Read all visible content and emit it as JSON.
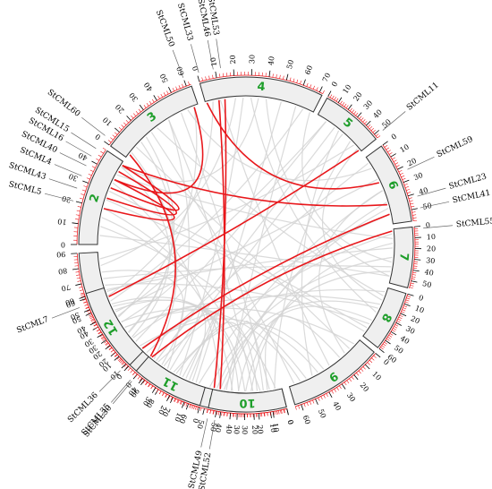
{
  "diagram": {
    "type": "circos-synteny",
    "background_link_color": "#d3d3d3",
    "highlight_link_color": "#e8171b",
    "chromosome_fill": "#efefef",
    "chromosome_label_color": "#1e9e2a",
    "tick_color": "#e8171b",
    "chromosomes": [
      {
        "id": "0",
        "label": "0",
        "length": 92,
        "arc_start_deg": 76,
        "arc_end_deg": 128
      },
      {
        "id": "1",
        "label": "1",
        "length": 90,
        "arc_start_deg": 130,
        "arc_end_deg": 177
      },
      {
        "id": "2",
        "label": "2",
        "length": 48,
        "arc_start_deg": 180,
        "arc_end_deg": 214
      },
      {
        "id": "3",
        "label": "3",
        "length": 63,
        "arc_start_deg": 216,
        "arc_end_deg": 251
      },
      {
        "id": "4",
        "label": "4",
        "length": 72,
        "arc_start_deg": 254,
        "arc_end_deg": 297
      },
      {
        "id": "5",
        "label": "5",
        "length": 54,
        "arc_start_deg": 299,
        "arc_end_deg": 321
      },
      {
        "id": "6",
        "label": "6",
        "length": 58,
        "arc_start_deg": 324,
        "arc_end_deg": 352
      },
      {
        "id": "7",
        "label": "7",
        "length": 57,
        "arc_start_deg": 354,
        "arc_end_deg": 375
      },
      {
        "id": "8",
        "label": "8",
        "length": 60,
        "arc_start_deg": 377,
        "arc_end_deg": 398
      },
      {
        "id": "9",
        "label": "9",
        "length": 64,
        "arc_start_deg": 400,
        "arc_end_deg": 433
      },
      {
        "id": "10",
        "label": "10",
        "length": 56,
        "arc_start_deg": 436,
        "arc_end_deg": 463
      },
      {
        "id": "11",
        "label": "11",
        "length": 46,
        "arc_start_deg": 466,
        "arc_end_deg": 491
      },
      {
        "id": "12",
        "label": "12",
        "length": 62,
        "arc_start_deg": 494,
        "arc_end_deg": 523
      }
    ],
    "genes": [
      {
        "name": "StCML52",
        "chrom": "10",
        "pos": 50
      },
      {
        "name": "StCML49",
        "chrom": "10",
        "pos": 55
      },
      {
        "name": "StCML30",
        "chrom": "11",
        "pos": 44
      },
      {
        "name": "StCML36",
        "chrom": "12",
        "pos": 2
      },
      {
        "name": "StCML7",
        "chrom": "12",
        "pos": 54
      },
      {
        "name": "StCML35",
        "chrom": "1",
        "pos": 1
      },
      {
        "name": "StCML5",
        "chrom": "2",
        "pos": 20
      },
      {
        "name": "StCML43",
        "chrom": "2",
        "pos": 26
      },
      {
        "name": "StCML4",
        "chrom": "2",
        "pos": 32
      },
      {
        "name": "StCML40",
        "chrom": "2",
        "pos": 37
      },
      {
        "name": "StCML16",
        "chrom": "2",
        "pos": 42
      },
      {
        "name": "StCML15",
        "chrom": "2",
        "pos": 46
      },
      {
        "name": "StCML60",
        "chrom": "3",
        "pos": 3
      },
      {
        "name": "StCML50",
        "chrom": "3",
        "pos": 60
      },
      {
        "name": "StCML33",
        "chrom": "4",
        "pos": 1
      },
      {
        "name": "StCML46",
        "chrom": "4",
        "pos": 9
      },
      {
        "name": "StCML53",
        "chrom": "4",
        "pos": 13
      },
      {
        "name": "StCML11",
        "chrom": "5",
        "pos": 52
      },
      {
        "name": "StCML59",
        "chrom": "6",
        "pos": 23
      },
      {
        "name": "StCML23",
        "chrom": "6",
        "pos": 42
      },
      {
        "name": "StCML41",
        "chrom": "6",
        "pos": 50
      },
      {
        "name": "StCML55",
        "chrom": "7",
        "pos": 2
      }
    ],
    "highlight_links": [
      [
        "StCML49",
        "StCML53"
      ],
      [
        "StCML52",
        "StCML46"
      ],
      [
        "StCML30",
        "StCML55"
      ],
      [
        "StCML36",
        "StCML41"
      ],
      [
        "StCML35",
        "StCML60"
      ],
      [
        "StCML7",
        "StCML11"
      ],
      [
        "StCML5",
        "StCML40"
      ],
      [
        "StCML43",
        "StCML16"
      ],
      [
        "StCML4",
        "StCML15"
      ],
      [
        "StCML23",
        "StCML15"
      ],
      [
        "StCML59",
        "StCML33"
      ],
      [
        "StCML50",
        "StCML40"
      ]
    ],
    "background_links": [
      [
        "0",
        10,
        "9",
        20
      ],
      [
        "0",
        30,
        "8",
        40
      ],
      [
        "0",
        50,
        "7",
        30
      ],
      [
        "0",
        70,
        "10",
        20
      ],
      [
        "0",
        85,
        "5",
        30
      ],
      [
        "0",
        20,
        "3",
        40
      ],
      [
        "0",
        60,
        "4",
        50
      ],
      [
        "0",
        40,
        "6",
        40
      ],
      [
        "1",
        10,
        "9",
        40
      ],
      [
        "1",
        30,
        "8",
        20
      ],
      [
        "1",
        50,
        "10",
        30
      ],
      [
        "1",
        70,
        "7",
        40
      ],
      [
        "1",
        80,
        "4",
        20
      ],
      [
        "1",
        20,
        "11",
        10
      ],
      [
        "1",
        60,
        "12",
        30
      ],
      [
        "1",
        40,
        "5",
        10
      ],
      [
        "2",
        10,
        "9",
        50
      ],
      [
        "2",
        30,
        "8",
        50
      ],
      [
        "2",
        40,
        "7",
        10
      ],
      [
        "2",
        15,
        "10",
        40
      ],
      [
        "3",
        10,
        "9",
        10
      ],
      [
        "3",
        30,
        "8",
        10
      ],
      [
        "3",
        50,
        "10",
        10
      ],
      [
        "3",
        20,
        "12",
        20
      ],
      [
        "3",
        40,
        "11",
        30
      ],
      [
        "3",
        55,
        "6",
        10
      ],
      [
        "4",
        10,
        "9",
        30
      ],
      [
        "4",
        30,
        "8",
        30
      ],
      [
        "4",
        40,
        "7",
        50
      ],
      [
        "4",
        60,
        "10",
        45
      ],
      [
        "4",
        65,
        "12",
        50
      ],
      [
        "4",
        25,
        "11",
        20
      ],
      [
        "5",
        10,
        "12",
        10
      ],
      [
        "5",
        20,
        "11",
        40
      ],
      [
        "5",
        40,
        "0",
        5
      ],
      [
        "5",
        45,
        "1",
        85
      ],
      [
        "6",
        20,
        "12",
        40
      ],
      [
        "6",
        30,
        "11",
        5
      ],
      [
        "6",
        50,
        "0",
        90
      ],
      [
        "6",
        5,
        "1",
        5
      ],
      [
        "7",
        20,
        "12",
        60
      ],
      [
        "7",
        5,
        "11",
        25
      ],
      [
        "7",
        45,
        "0",
        25
      ],
      [
        "7",
        50,
        "2",
        5
      ],
      [
        "8",
        5,
        "12",
        5
      ],
      [
        "8",
        25,
        "0",
        45
      ],
      [
        "8",
        45,
        "1",
        65
      ],
      [
        "8",
        55,
        "2",
        25
      ],
      [
        "9",
        5,
        "12",
        25
      ],
      [
        "9",
        35,
        "0",
        75
      ],
      [
        "9",
        55,
        "1",
        35
      ],
      [
        "9",
        60,
        "3",
        25
      ],
      [
        "10",
        5,
        "12",
        45
      ],
      [
        "10",
        15,
        "0",
        35
      ],
      [
        "10",
        35,
        "1",
        45
      ],
      [
        "10",
        50,
        "2",
        35
      ],
      [
        "11",
        15,
        "0",
        65
      ],
      [
        "11",
        35,
        "1",
        75
      ],
      [
        "11",
        42,
        "3",
        5
      ],
      [
        "12",
        15,
        "2",
        45
      ],
      [
        "12",
        35,
        "3",
        60
      ],
      [
        "12",
        55,
        "4",
        5
      ],
      [
        "0",
        15,
        "2",
        20
      ],
      [
        "0",
        80,
        "11",
        40
      ],
      [
        "9",
        15,
        "6",
        30
      ],
      [
        "8",
        15,
        "5",
        50
      ],
      [
        "10",
        25,
        "7",
        15
      ],
      [
        "1",
        25,
        "3",
        15
      ],
      [
        "2",
        45,
        "4",
        35
      ],
      [
        "5",
        25,
        "9",
        45
      ],
      [
        "6",
        45,
        "10",
        50
      ],
      [
        "7",
        35,
        "4",
        70
      ]
    ]
  }
}
